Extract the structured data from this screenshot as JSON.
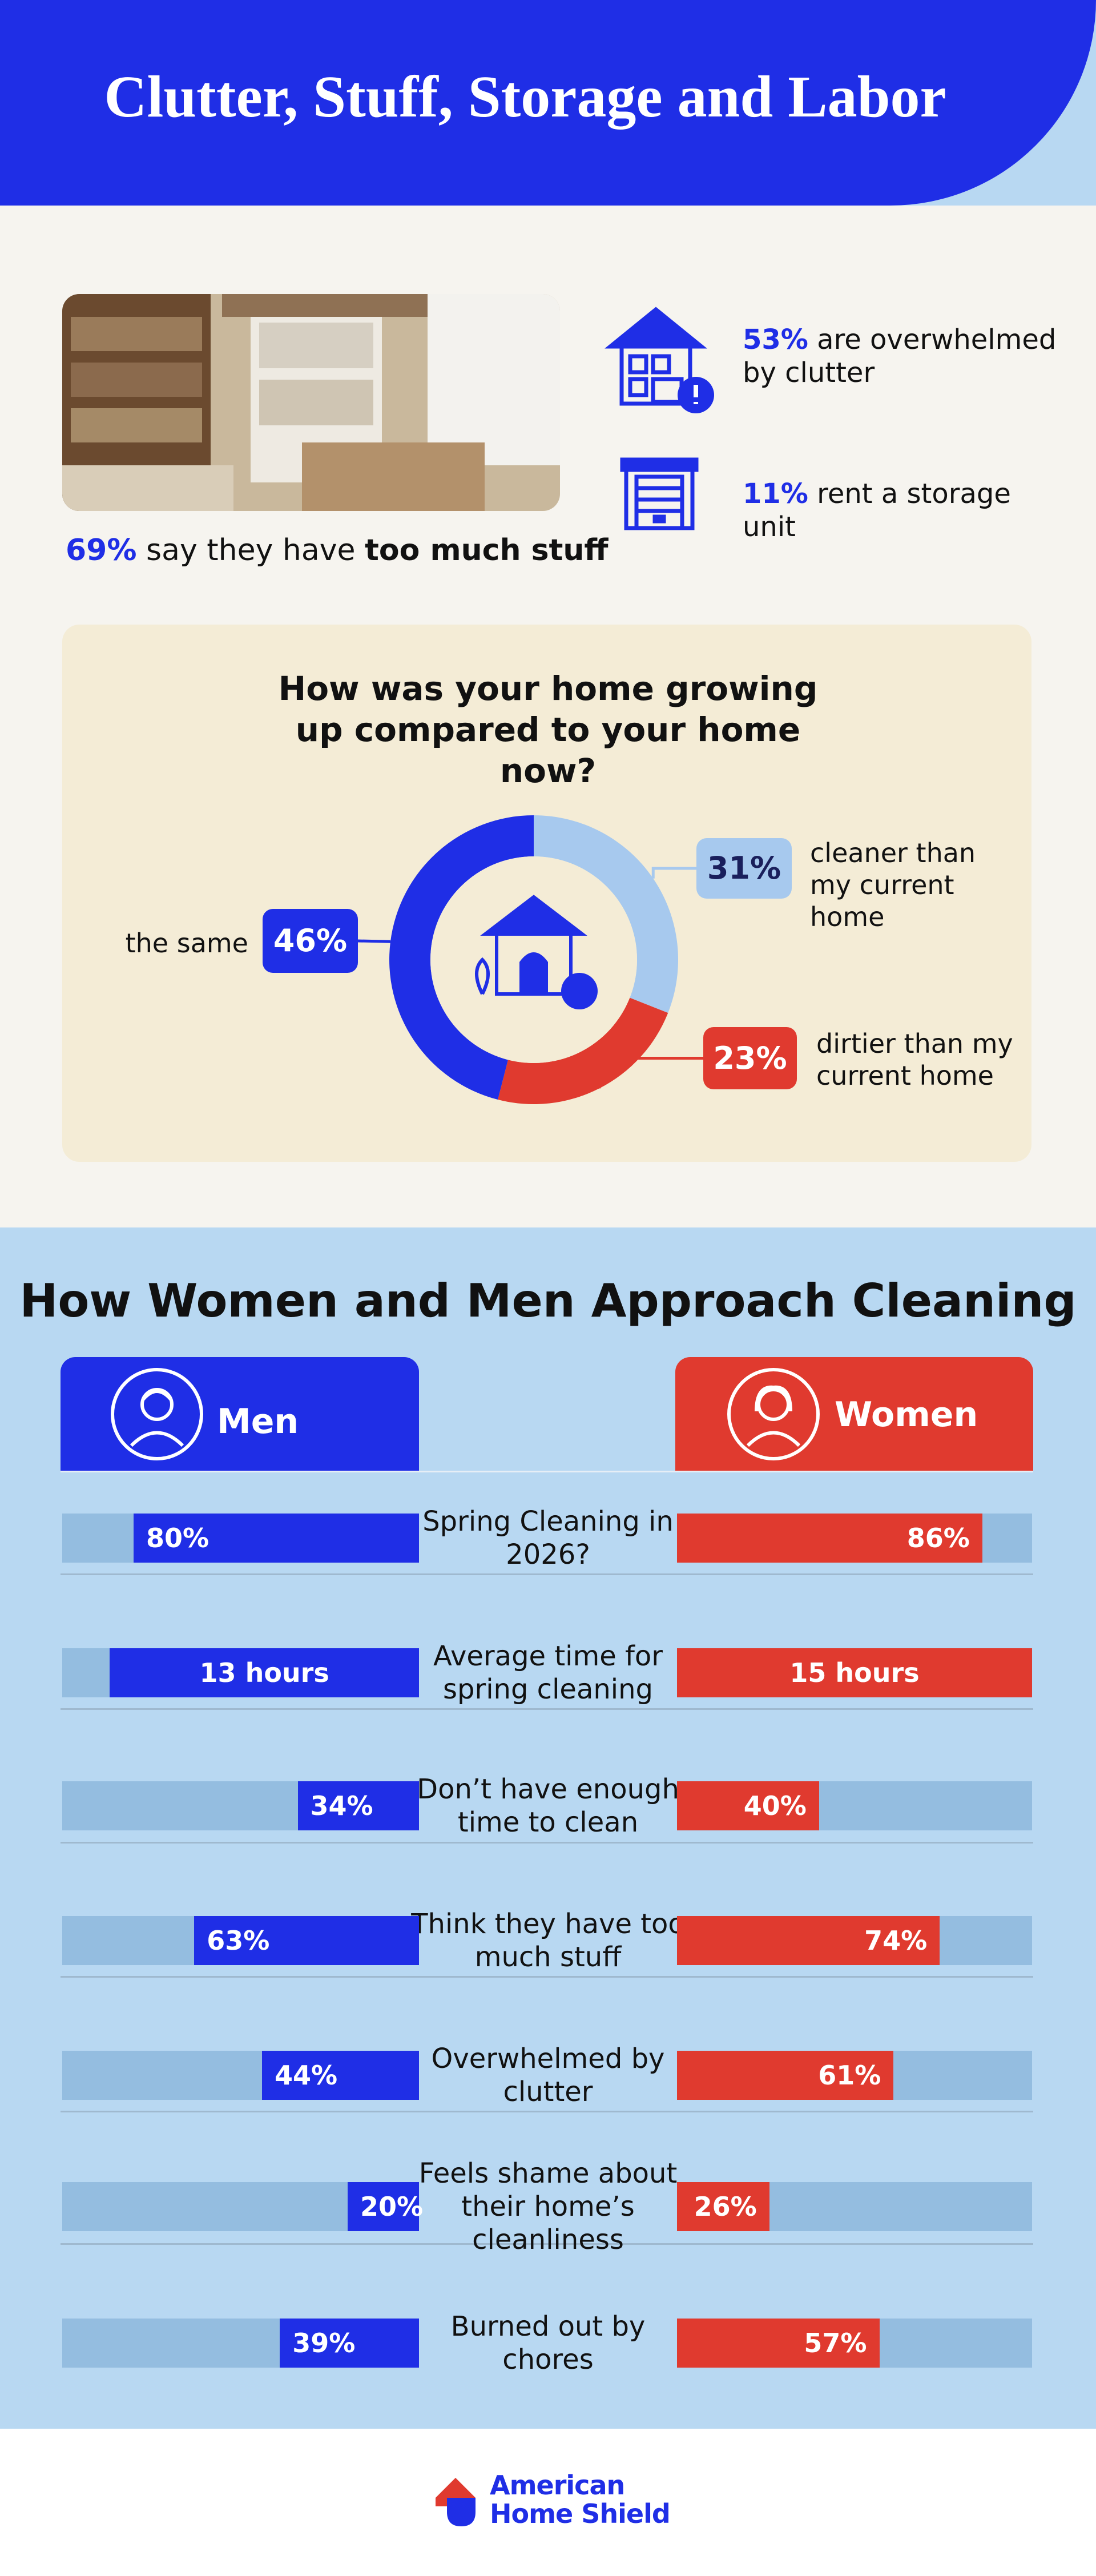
{
  "header": {
    "title": "Clutter, Stuff, Storage and Labor"
  },
  "stats": [
    {
      "figure": "69%",
      "text": "say they have",
      "emphasis": "too much stuff"
    },
    {
      "figure": "53%",
      "text": "are overwhelmed by clutter"
    },
    {
      "figure": "11%",
      "text": "rent a storage unit"
    }
  ],
  "chart_data": [
    {
      "type": "pie",
      "donut": true,
      "title": "How was your home growing up compared to your home now?",
      "categories": [
        "cleaner than my current home",
        "dirtier than my current home",
        "the same"
      ],
      "values": [
        31,
        23,
        46
      ],
      "value_labels": [
        "31%",
        "23%",
        "46%"
      ],
      "colors": [
        "#a7c9ee",
        "#e03a2f",
        "#1f2ee6"
      ]
    },
    {
      "type": "bar",
      "title": "How Women and Men Approach Cleaning",
      "categories": [
        "Spring Cleaning in 2026?",
        "Don’t have enough time to clean",
        "Think they have too much stuff",
        "Overwhelmed by clutter",
        "Feels shame about their home’s cleanliness",
        "Burned out by chores"
      ],
      "series": [
        {
          "name": "Men",
          "color": "#1f2ee6",
          "values": [
            80,
            34,
            63,
            44,
            20,
            39
          ],
          "value_labels": [
            "80%",
            "34%",
            "63%",
            "44%",
            "20%",
            "39%"
          ]
        },
        {
          "name": "Women",
          "color": "#e03a2f",
          "values": [
            86,
            40,
            74,
            61,
            26,
            57
          ],
          "value_labels": [
            "86%",
            "40%",
            "74%",
            "61%",
            "26%",
            "57%"
          ]
        }
      ],
      "xlim": [
        0,
        100
      ]
    },
    {
      "type": "bar",
      "categories": [
        "Average time for spring cleaning"
      ],
      "series": [
        {
          "name": "Men",
          "color": "#1f2ee6",
          "values": [
            13
          ],
          "value_labels": [
            "13 hours"
          ]
        },
        {
          "name": "Women",
          "color": "#e03a2f",
          "values": [
            15
          ],
          "value_labels": [
            "15 hours"
          ]
        }
      ],
      "xlim": [
        0,
        15
      ]
    }
  ],
  "footer": {
    "brand": [
      "American",
      "Home Shield"
    ]
  }
}
